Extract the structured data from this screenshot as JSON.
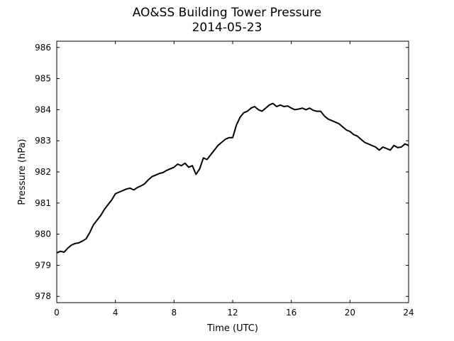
{
  "chart_data": {
    "type": "line",
    "title": "AO&SS Building Tower Pressure",
    "subtitle": "2014-05-23",
    "xlabel": "Time (UTC)",
    "ylabel": "Pressure (hPa)",
    "xlim": [
      0,
      24
    ],
    "ylim": [
      977.8,
      986.2
    ],
    "xticks": [
      0,
      4,
      8,
      12,
      16,
      20,
      24
    ],
    "yticks": [
      978,
      979,
      980,
      981,
      982,
      983,
      984,
      985,
      986
    ],
    "grid": false,
    "series_color": "#000000",
    "series": [
      {
        "x": [
          0,
          0.25,
          0.5,
          0.75,
          1,
          1.25,
          1.5,
          1.75,
          2,
          2.25,
          2.5,
          2.75,
          3,
          3.25,
          3.5,
          3.75,
          4,
          4.25,
          4.5,
          4.75,
          5,
          5.25,
          5.5,
          5.75,
          6,
          6.25,
          6.5,
          6.75,
          7,
          7.25,
          7.5,
          7.75,
          8,
          8.25,
          8.5,
          8.75,
          9,
          9.25,
          9.5,
          9.75,
          10,
          10.25,
          10.5,
          10.75,
          11,
          11.25,
          11.5,
          11.75,
          12,
          12.25,
          12.5,
          12.75,
          13,
          13.25,
          13.5,
          13.75,
          14,
          14.25,
          14.5,
          14.75,
          15,
          15.25,
          15.5,
          15.75,
          16,
          16.25,
          16.5,
          16.75,
          17,
          17.25,
          17.5,
          17.75,
          18,
          18.25,
          18.5,
          18.75,
          19,
          19.25,
          19.5,
          19.75,
          20,
          20.25,
          20.5,
          20.75,
          21,
          21.25,
          21.5,
          21.75,
          22,
          22.25,
          22.5,
          22.75,
          23,
          23.25,
          23.5,
          23.75,
          24
        ],
        "values": [
          979.4,
          979.45,
          979.42,
          979.55,
          979.65,
          979.7,
          979.72,
          979.78,
          979.85,
          980.05,
          980.3,
          980.45,
          980.6,
          980.8,
          980.95,
          981.1,
          981.3,
          981.35,
          981.4,
          981.45,
          981.48,
          981.42,
          981.5,
          981.55,
          981.62,
          981.75,
          981.85,
          981.9,
          981.95,
          981.98,
          982.05,
          982.1,
          982.15,
          982.25,
          982.2,
          982.28,
          982.15,
          982.2,
          981.92,
          982.1,
          982.45,
          982.4,
          982.55,
          982.7,
          982.85,
          982.95,
          983.05,
          983.1,
          983.1,
          983.5,
          983.75,
          983.9,
          983.95,
          984.05,
          984.1,
          984.0,
          983.95,
          984.05,
          984.15,
          984.2,
          984.1,
          984.15,
          984.1,
          984.12,
          984.05,
          984.0,
          984.02,
          984.05,
          984.0,
          984.05,
          983.98,
          983.95,
          983.95,
          983.8,
          983.7,
          983.65,
          983.6,
          983.55,
          983.45,
          983.35,
          983.3,
          983.2,
          983.15,
          983.05,
          982.95,
          982.9,
          982.85,
          982.8,
          982.7,
          982.8,
          982.75,
          982.7,
          982.85,
          982.78,
          982.8,
          982.9,
          982.85
        ]
      }
    ]
  }
}
